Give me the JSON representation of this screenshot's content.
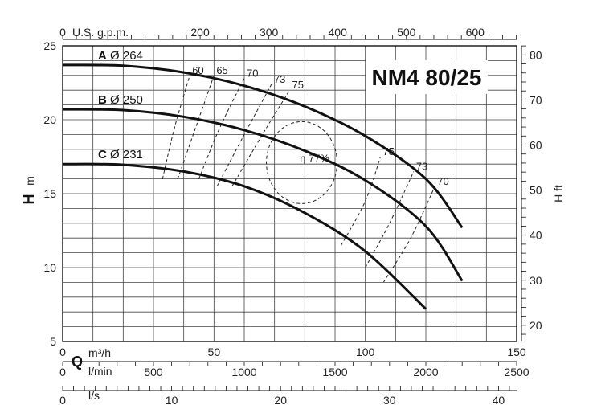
{
  "chart_data": {
    "type": "line",
    "model": "NM4 80/25",
    "x_axis": {
      "quantity": "Q",
      "unit": "m³/h",
      "range": [
        0,
        150
      ],
      "ticks": [
        0,
        50,
        100,
        150
      ],
      "secondary_axes": [
        {
          "unit": "U.S. g.p.m.",
          "position": "top",
          "ticks": [
            "0",
            "200",
            "300",
            "400",
            "500",
            "600"
          ],
          "values_m3h": [
            0,
            45.42,
            68.14,
            90.85,
            113.56,
            136.27
          ]
        },
        {
          "unit": "l/min",
          "position": "bottom",
          "ticks": [
            "0",
            "500",
            "1000",
            "1500",
            "2000",
            "2500"
          ],
          "values_m3h": [
            0,
            30,
            60,
            90,
            120,
            150
          ]
        },
        {
          "unit": "l/s",
          "position": "bottom",
          "ticks": [
            "0",
            "10",
            "20",
            "30",
            "40"
          ],
          "values_m3h": [
            0,
            36,
            72,
            108,
            144
          ]
        }
      ]
    },
    "y_axis": {
      "quantity": "H",
      "unit": "m",
      "range": [
        5,
        25
      ],
      "ticks": [
        5,
        10,
        15,
        20,
        25
      ],
      "secondary_axis": {
        "quantity": "H",
        "unit": "ft",
        "position": "right",
        "ticks": [
          "20",
          "30",
          "40",
          "50",
          "60",
          "70",
          "80"
        ],
        "values_m": [
          6.096,
          9.144,
          12.192,
          15.24,
          18.288,
          21.336,
          24.384
        ]
      }
    },
    "grid": true,
    "series": [
      {
        "name": "A Ø 264",
        "letter": "A",
        "diameter_label": "Ø 264",
        "q": [
          0,
          20,
          40,
          60,
          80,
          100,
          120,
          132
        ],
        "h": [
          23.7,
          23.65,
          23.2,
          22.3,
          20.9,
          18.9,
          16.0,
          12.7
        ]
      },
      {
        "name": "B Ø 250",
        "letter": "B",
        "diameter_label": "Ø 250",
        "q": [
          0,
          20,
          40,
          60,
          80,
          100,
          120,
          132
        ],
        "h": [
          20.7,
          20.65,
          20.2,
          19.3,
          17.9,
          15.9,
          12.8,
          9.1
        ]
      },
      {
        "name": "C Ø 231",
        "letter": "C",
        "diameter_label": "Ø 231",
        "q": [
          0,
          20,
          40,
          60,
          80,
          100,
          120
        ],
        "h": [
          17.0,
          16.95,
          16.5,
          15.5,
          13.7,
          11.1,
          7.2
        ]
      }
    ],
    "efficiency_iso_lines": [
      {
        "label": "60",
        "q": [
          33,
          37,
          42
        ],
        "h": [
          16.0,
          19.5,
          23.0
        ]
      },
      {
        "label": "65",
        "q": [
          38,
          44,
          50
        ],
        "h": [
          16.0,
          19.5,
          23.0
        ]
      },
      {
        "label": "70",
        "q": [
          45,
          52,
          60
        ],
        "h": [
          16.0,
          19.5,
          22.8
        ]
      },
      {
        "label": "73",
        "q": [
          51,
          60,
          69
        ],
        "h": [
          15.5,
          19.0,
          22.4
        ]
      },
      {
        "label": "75",
        "q": [
          56,
          66,
          75
        ],
        "h": [
          15.5,
          19.0,
          22.0
        ]
      },
      {
        "label": "75",
        "q": [
          92,
          100,
          105
        ],
        "h": [
          11.5,
          14.5,
          17.5
        ]
      },
      {
        "label": "73",
        "q": [
          100,
          108,
          116
        ],
        "h": [
          10.0,
          13.0,
          16.5
        ]
      },
      {
        "label": "70",
        "q": [
          106,
          115,
          123
        ],
        "h": [
          9.0,
          12.0,
          15.5
        ]
      }
    ],
    "efficiency_peak": {
      "label": "η 77%",
      "center_q": 79,
      "center_h": 17.1
    }
  }
}
